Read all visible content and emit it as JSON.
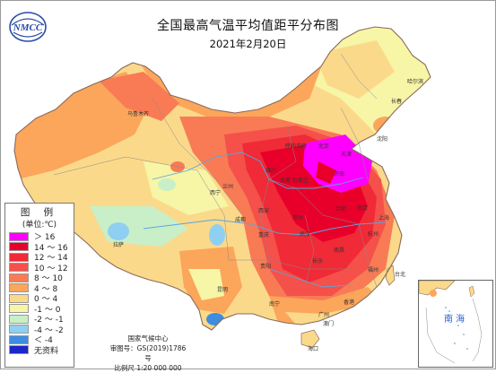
{
  "title": "全国最高气温平均值距平分布图",
  "subtitle": "2021年2月20日",
  "logo_text": "NMCC",
  "legend": {
    "title": "图 例",
    "unit": "(单位:℃)",
    "items": [
      {
        "label": "＞ 16",
        "color": "#ff00ff"
      },
      {
        "label": "14 ～ 16",
        "color": "#e8002a"
      },
      {
        "label": "12 ～ 14",
        "color": "#f02a36"
      },
      {
        "label": "10 ～ 12",
        "color": "#f5504a"
      },
      {
        "label": "8 ～ 10",
        "color": "#f87b55"
      },
      {
        "label": "4 ～ 8",
        "color": "#fba65b"
      },
      {
        "label": "0 ～ 4",
        "color": "#fbd98a"
      },
      {
        "label": "-1 ～ 0",
        "color": "#f7f5a6"
      },
      {
        "label": "-2 ～ -1",
        "color": "#c8efc7"
      },
      {
        "label": "-4 ～ -2",
        "color": "#8fd0f2"
      },
      {
        "label": "＜ -4",
        "color": "#3d8de0"
      },
      {
        "label": "无资料",
        "color": "#1b27c8"
      }
    ]
  },
  "credits": {
    "agency": "国家气候中心",
    "map_number": "审图号：GS(2019)1786号",
    "scale": "比例尺 1:20 000 000"
  },
  "inset_label": "南 海",
  "place_labels": [
    "北京",
    "石家庄",
    "济南",
    "郑州",
    "武汉",
    "长沙",
    "南昌",
    "福州",
    "台北",
    "香港",
    "海口",
    "乌鲁木齐",
    "拉萨",
    "成都",
    "重庆",
    "兰州",
    "银川",
    "呼和浩特",
    "太原",
    "西安",
    "南京",
    "上海",
    "杭州",
    "合肥",
    "长春",
    "哈尔滨",
    "沈阳",
    "天津",
    "西宁",
    "昆明",
    "贵阳",
    "南宁",
    "广州",
    "澳门"
  ]
}
